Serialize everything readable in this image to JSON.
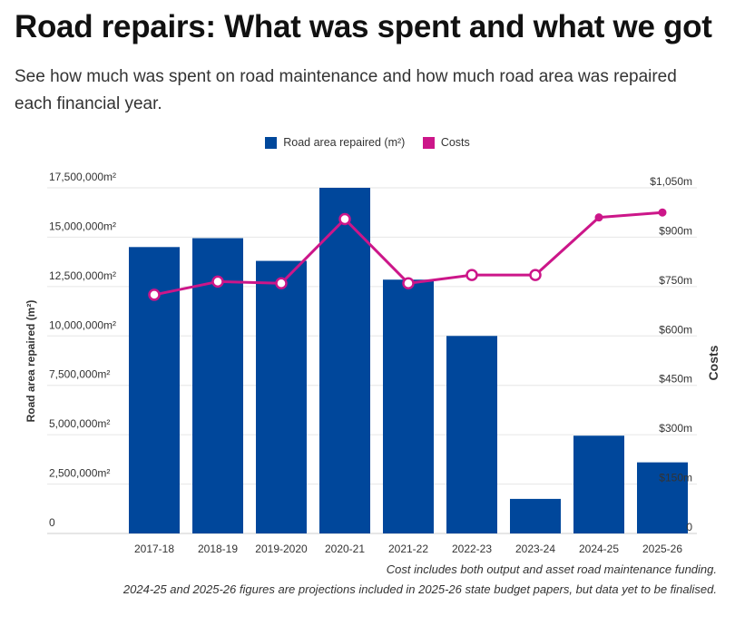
{
  "header": {
    "title": "Road repairs: What was spent and what we got",
    "subtitle": "See how much was spent on road maintenance and how much road area was repaired each financial year."
  },
  "notes": [
    "Cost includes both output and asset road maintenance funding.",
    "2024-25 and 2025-26 figures are projections included in 2025-26 state budget papers, but data yet to be finalised."
  ],
  "chart_data": {
    "type": "bar",
    "categories": [
      "2017-18",
      "2018-19",
      "2019-2020",
      "2020-21",
      "2021-22",
      "2022-23",
      "2023-24",
      "2024-25",
      "2025-26"
    ],
    "series": [
      {
        "name": "Road area repaired (m²)",
        "type": "bar",
        "axis": "left",
        "color": "#00479b",
        "values": [
          14500000,
          14950000,
          13800000,
          17500000,
          12850000,
          10000000,
          1750000,
          4950000,
          3600000
        ]
      },
      {
        "name": "Costs",
        "type": "line",
        "axis": "right",
        "color": "#cc1689",
        "values": [
          725,
          765,
          760,
          955,
          760,
          785,
          785,
          960,
          975
        ]
      }
    ],
    "left_axis": {
      "title": "Road area repaired (m²)",
      "range": [
        0,
        17500000
      ],
      "ticks": [
        0,
        2500000,
        5000000,
        7500000,
        10000000,
        12500000,
        15000000,
        17500000
      ],
      "tick_labels": [
        "0",
        "2,500,000m²",
        "5,000,000m²",
        "7,500,000m²",
        "10,000,000m²",
        "12,500,000m²",
        "15,000,000m²",
        "17,500,000m²"
      ]
    },
    "right_axis": {
      "title": "Costs",
      "range": [
        0,
        1050
      ],
      "ticks": [
        0,
        150,
        300,
        450,
        600,
        750,
        900,
        1050
      ],
      "tick_labels": [
        "0",
        "$150m",
        "$300m",
        "$450m",
        "$600m",
        "$750m",
        "$900m",
        "$1,050m"
      ]
    },
    "grid": true,
    "legend_placement": "top-center"
  }
}
